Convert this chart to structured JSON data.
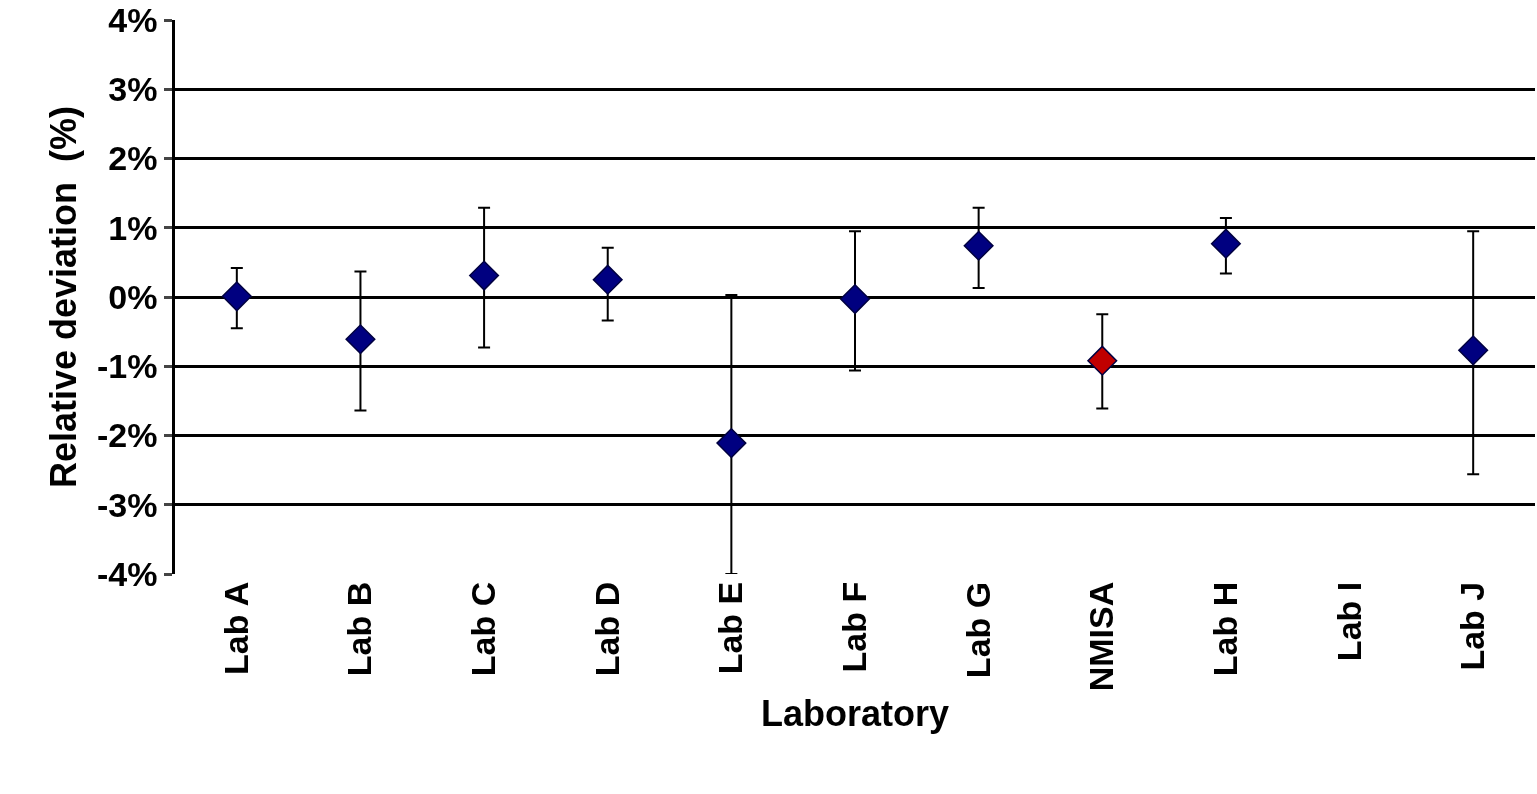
{
  "chart_data": {
    "type": "scatter",
    "xlabel": "Laboratory",
    "ylabel": "Relative deviation  (%)",
    "categories": [
      "Lab A",
      "Lab B",
      "Lab C",
      "Lab D",
      "Lab E",
      "Lab F",
      "Lab G",
      "NMISA",
      "Lab H",
      "Lab I",
      "Lab J"
    ],
    "values": [
      0.01,
      -0.61,
      0.31,
      0.25,
      -2.11,
      -0.03,
      0.74,
      -0.92,
      0.77,
      null,
      -0.77
    ],
    "errors": [
      [
        -0.45,
        0.42
      ],
      [
        -1.64,
        0.37
      ],
      [
        -0.73,
        1.29
      ],
      [
        -0.34,
        0.71
      ],
      [
        -4.0,
        0.03
      ],
      [
        -1.06,
        0.95
      ],
      [
        0.13,
        1.29
      ],
      [
        -1.61,
        -0.25
      ],
      [
        0.34,
        1.14
      ],
      null,
      [
        -2.56,
        0.95
      ]
    ],
    "colors": [
      "#000080",
      "#000080",
      "#000080",
      "#000080",
      "#000080",
      "#000080",
      "#000080",
      "#c00000",
      "#000080",
      "#000080",
      "#000080"
    ],
    "ylim": [
      -4,
      4
    ],
    "yticks": [
      {
        "value": -4,
        "label": "-4%"
      },
      {
        "value": -3,
        "label": "-3%"
      },
      {
        "value": -2,
        "label": "-2%"
      },
      {
        "value": -1,
        "label": "-1%"
      },
      {
        "value": 0,
        "label": "0%"
      },
      {
        "value": 1,
        "label": "1%"
      },
      {
        "value": 2,
        "label": "2%"
      },
      {
        "value": 3,
        "label": "3%"
      },
      {
        "value": 4,
        "label": "4%"
      }
    ],
    "grid": "y",
    "marker": "diamond"
  }
}
